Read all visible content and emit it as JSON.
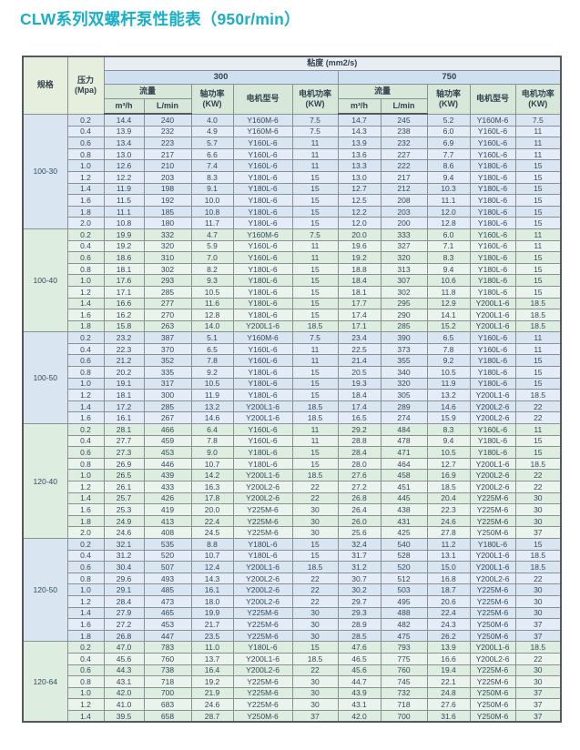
{
  "page": {
    "title": "CLW系列双螺杆泵性能表（950r/min）",
    "accent_color": "#18afc7"
  },
  "table": {
    "headers": {
      "spec": "规格",
      "pressure_line1": "压力",
      "pressure_line2": "(Mpa)",
      "viscosity": "粘度 (mm2/s)",
      "visc_300": "300",
      "visc_750": "750",
      "flow": "流量",
      "flow_m3h": "m³/h",
      "flow_lmin": "L/min",
      "shaft_power_line1": "轴功率",
      "shaft_power_line2": "(KW)",
      "motor_model": "电机型号",
      "motor_power_line1": "电机功率",
      "motor_power_line2": "(KW)"
    },
    "colors": {
      "row_blue": "#d9e6f2",
      "row_blue_alt": "#e3ecf7",
      "row_green": "#ddede0",
      "row_green_alt": "#ebf4ec",
      "header_group_blue": "#cfe0f0",
      "header_sub_green": "#d7e7d9",
      "header_spec_green": "#e6eedd"
    },
    "groups": [
      {
        "spec": "100-30",
        "tint": "blue",
        "rows": [
          [
            "0.2",
            "14.4",
            "240",
            "4.0",
            "Y160M-6",
            "7.5",
            "14.7",
            "245",
            "5.2",
            "Y160M-6",
            "7.5"
          ],
          [
            "0.4",
            "13.9",
            "232",
            "4.9",
            "Y160M-6",
            "7.5",
            "14.3",
            "238",
            "6.0",
            "Y160L-6",
            "11"
          ],
          [
            "0.6",
            "13.4",
            "223",
            "5.7",
            "Y160L-6",
            "11",
            "13.9",
            "232",
            "6.9",
            "Y160L-6",
            "11"
          ],
          [
            "0.8",
            "13.0",
            "217",
            "6.6",
            "Y160L-6",
            "11",
            "13.6",
            "227",
            "7.7",
            "Y160L-6",
            "11"
          ],
          [
            "1.0",
            "12.6",
            "210",
            "7.4",
            "Y160L-6",
            "11",
            "13.3",
            "222",
            "8.6",
            "Y180L-6",
            "15"
          ],
          [
            "1.2",
            "12.2",
            "203",
            "8.3",
            "Y180L-6",
            "15",
            "13.0",
            "217",
            "9.4",
            "Y180L-6",
            "15"
          ],
          [
            "1.4",
            "11.9",
            "198",
            "9.1",
            "Y180L-6",
            "15",
            "12.7",
            "212",
            "10.3",
            "Y180L-6",
            "15"
          ],
          [
            "1.6",
            "11.5",
            "192",
            "10.0",
            "Y180L-6",
            "15",
            "12.5",
            "208",
            "11.1",
            "Y180L-6",
            "15"
          ],
          [
            "1.8",
            "11.1",
            "185",
            "10.8",
            "Y180L-6",
            "15",
            "12.2",
            "203",
            "12.0",
            "Y180L-6",
            "15"
          ],
          [
            "2.0",
            "10.8",
            "180",
            "11.7",
            "Y180L-6",
            "15",
            "12.0",
            "200",
            "12.8",
            "Y180L-6",
            "15"
          ]
        ]
      },
      {
        "spec": "100-40",
        "tint": "green",
        "rows": [
          [
            "0.2",
            "19.9",
            "332",
            "4.7",
            "Y160M-6",
            "7.5",
            "20.0",
            "333",
            "6.0",
            "Y160L-6",
            "11"
          ],
          [
            "0.4",
            "19.2",
            "320",
            "5.9",
            "Y160L-6",
            "11",
            "19.6",
            "327",
            "7.1",
            "Y160L-6",
            "11"
          ],
          [
            "0.6",
            "18.6",
            "310",
            "7.0",
            "Y160L-6",
            "11",
            "19.2",
            "320",
            "8.3",
            "Y180L-6",
            "15"
          ],
          [
            "0.8",
            "18.1",
            "302",
            "8.2",
            "Y180L-6",
            "15",
            "18.8",
            "313",
            "9.4",
            "Y180L-6",
            "15"
          ],
          [
            "1.0",
            "17.6",
            "293",
            "9.3",
            "Y180L-6",
            "15",
            "18.4",
            "307",
            "10.6",
            "Y180L-6",
            "15"
          ],
          [
            "1.2",
            "17.1",
            "285",
            "10.5",
            "Y180L-6",
            "15",
            "18.1",
            "302",
            "11.8",
            "Y180L-6",
            "15"
          ],
          [
            "1.4",
            "16.6",
            "277",
            "11.6",
            "Y180L-6",
            "15",
            "17.7",
            "295",
            "12.9",
            "Y200L1-6",
            "18.5"
          ],
          [
            "1.6",
            "16.2",
            "270",
            "12.8",
            "Y180L-6",
            "15",
            "17.4",
            "290",
            "14.1",
            "Y200L1-6",
            "18.5"
          ],
          [
            "1.8",
            "15.8",
            "263",
            "14.0",
            "Y200L1-6",
            "18.5",
            "17.1",
            "285",
            "15.2",
            "Y200L1-6",
            "18.5"
          ]
        ]
      },
      {
        "spec": "100-50",
        "tint": "blue",
        "rows": [
          [
            "0.2",
            "23.2",
            "387",
            "5.1",
            "Y160M-6",
            "7.5",
            "23.4",
            "390",
            "6.5",
            "Y160L-6",
            "11"
          ],
          [
            "0.4",
            "22.3",
            "370",
            "6.5",
            "Y160L-6",
            "11",
            "22.5",
            "373",
            "7.8",
            "Y160L-6",
            "11"
          ],
          [
            "0.6",
            "21.2",
            "352",
            "7.8",
            "Y160L-6",
            "11",
            "21.4",
            "355",
            "9.2",
            "Y180L-6",
            "15"
          ],
          [
            "0.8",
            "20.2",
            "335",
            "9.2",
            "Y180L-6",
            "15",
            "20.5",
            "340",
            "10.5",
            "Y180L-6",
            "15"
          ],
          [
            "1.0",
            "19.1",
            "317",
            "10.5",
            "Y180L-6",
            "15",
            "19.3",
            "320",
            "11.9",
            "Y180L-6",
            "15"
          ],
          [
            "1.2",
            "18.1",
            "300",
            "11.9",
            "Y180L-6",
            "15",
            "18.4",
            "305",
            "13.2",
            "Y200L1-6",
            "18.5"
          ],
          [
            "1.4",
            "17.2",
            "285",
            "13.2",
            "Y200L1-6",
            "18.5",
            "17.4",
            "289",
            "14.6",
            "Y200L2-6",
            "22"
          ],
          [
            "1.6",
            "16.1",
            "267",
            "14.6",
            "Y200L1-6",
            "18.5",
            "16.5",
            "274",
            "15.9",
            "Y200L2-6",
            "22"
          ]
        ]
      },
      {
        "spec": "120-40",
        "tint": "green",
        "rows": [
          [
            "0.2",
            "28.1",
            "466",
            "6.4",
            "Y160L-6",
            "11",
            "29.2",
            "484",
            "8.3",
            "Y160L-6",
            "11"
          ],
          [
            "0.4",
            "27.7",
            "459",
            "7.8",
            "Y160L-6",
            "11",
            "28.8",
            "478",
            "9.4",
            "Y180L-6",
            "15"
          ],
          [
            "0.6",
            "27.3",
            "453",
            "9.0",
            "Y180L-6",
            "15",
            "28.4",
            "471",
            "10.5",
            "Y180L-6",
            "15"
          ],
          [
            "0.8",
            "26.9",
            "446",
            "10.7",
            "Y180L-6",
            "15",
            "28.0",
            "464",
            "12.7",
            "Y200L1-6",
            "18.5"
          ],
          [
            "1.0",
            "26.5",
            "439",
            "14.2",
            "Y200L1-6",
            "18.5",
            "27.6",
            "458",
            "16.9",
            "Y200L2-6",
            "22"
          ],
          [
            "1.2",
            "26.1",
            "433",
            "16.3",
            "Y200L2-6",
            "22",
            "27.2",
            "451",
            "18.5",
            "Y200L2-6",
            "22"
          ],
          [
            "1.4",
            "25.7",
            "426",
            "17.8",
            "Y200L2-6",
            "22",
            "26.8",
            "445",
            "20.4",
            "Y225M-6",
            "30"
          ],
          [
            "1.6",
            "25.3",
            "419",
            "20.0",
            "Y225M-6",
            "30",
            "26.4",
            "438",
            "22.3",
            "Y225M-6",
            "30"
          ],
          [
            "1.8",
            "24.9",
            "413",
            "22.4",
            "Y225M-6",
            "30",
            "26.0",
            "431",
            "24.6",
            "Y225M-6",
            "30"
          ],
          [
            "2.0",
            "24.6",
            "408",
            "24.5",
            "Y225M-6",
            "30",
            "25.6",
            "425",
            "27.8",
            "Y250M-6",
            "37"
          ]
        ]
      },
      {
        "spec": "120-50",
        "tint": "blue",
        "rows": [
          [
            "0.2",
            "32.1",
            "535",
            "8.8",
            "Y180L-6",
            "15",
            "32.4",
            "540",
            "11.2",
            "Y180L-6",
            "15"
          ],
          [
            "0.4",
            "31.2",
            "520",
            "10.7",
            "Y180L-6",
            "15",
            "31.7",
            "528",
            "13.1",
            "Y200L1-6",
            "18.5"
          ],
          [
            "0.6",
            "30.4",
            "507",
            "12.4",
            "Y200L1-6",
            "18.5",
            "31.2",
            "520",
            "15.0",
            "Y200L1-6",
            "18.5"
          ],
          [
            "0.8",
            "29.6",
            "493",
            "14.3",
            "Y200L2-6",
            "22",
            "30.7",
            "512",
            "16.8",
            "Y200L2-6",
            "22"
          ],
          [
            "1.0",
            "29.1",
            "485",
            "16.1",
            "Y200L2-6",
            "22",
            "30.2",
            "503",
            "18.7",
            "Y225M-6",
            "30"
          ],
          [
            "1.2",
            "28.4",
            "473",
            "18.0",
            "Y200L2-6",
            "22",
            "29.7",
            "495",
            "20.6",
            "Y225M-6",
            "30"
          ],
          [
            "1.4",
            "27.9",
            "465",
            "19.9",
            "Y225M-6",
            "30",
            "29.3",
            "488",
            "22.4",
            "Y225M-6",
            "30"
          ],
          [
            "1.6",
            "27.2",
            "453",
            "21.7",
            "Y225M-6",
            "30",
            "28.9",
            "482",
            "24.3",
            "Y250M-6",
            "37"
          ],
          [
            "1.8",
            "26.8",
            "447",
            "23.5",
            "Y225M-6",
            "30",
            "28.5",
            "475",
            "26.2",
            "Y250M-6",
            "37"
          ]
        ]
      },
      {
        "spec": "120-64",
        "tint": "green",
        "rows": [
          [
            "0.2",
            "47.0",
            "783",
            "11.0",
            "Y180L-6",
            "15",
            "47.6",
            "793",
            "13.9",
            "Y200L1-6",
            "18.5"
          ],
          [
            "0.4",
            "45.6",
            "760",
            "13.7",
            "Y200L1-6",
            "18.5",
            "46.5",
            "775",
            "16.6",
            "Y200L2-6",
            "22"
          ],
          [
            "0.6",
            "44.3",
            "738",
            "16.4",
            "Y200L2-6",
            "22",
            "45.6",
            "760",
            "19.4",
            "Y225M-6",
            "30"
          ],
          [
            "0.8",
            "43.1",
            "718",
            "19.2",
            "Y225M-6",
            "30",
            "44.7",
            "745",
            "22.1",
            "Y225M-6",
            "30"
          ],
          [
            "1.0",
            "42.0",
            "700",
            "21.9",
            "Y225M-6",
            "30",
            "43.9",
            "732",
            "24.8",
            "Y250M-6",
            "37"
          ],
          [
            "1.2",
            "41.0",
            "683",
            "24.6",
            "Y225M-6",
            "30",
            "43.1",
            "718",
            "27.6",
            "Y250M-6",
            "37"
          ],
          [
            "1.4",
            "39.5",
            "658",
            "28.7",
            "Y250M-6",
            "37",
            "42.0",
            "700",
            "31.6",
            "Y250M-6",
            "37"
          ]
        ]
      }
    ]
  }
}
